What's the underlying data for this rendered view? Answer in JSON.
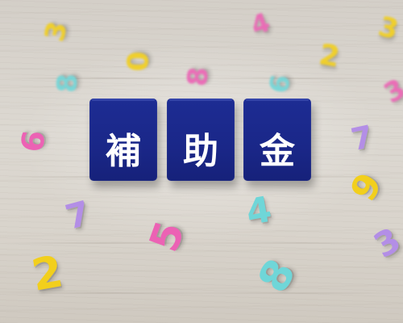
{
  "cubes": [
    {
      "char": "補"
    },
    {
      "char": "助"
    },
    {
      "char": "金"
    }
  ],
  "number_pieces": [
    {
      "digit": "3",
      "color": "#f2cf1c"
    },
    {
      "digit": "4",
      "color": "#ec62b4"
    },
    {
      "digit": "3",
      "color": "#f2cf1c"
    },
    {
      "digit": "8",
      "color": "#6fd6d8"
    },
    {
      "digit": "8",
      "color": "#ec62b4"
    },
    {
      "digit": "6",
      "color": "#6fd6d8"
    },
    {
      "digit": "0",
      "color": "#f2cf1c"
    },
    {
      "digit": "2",
      "color": "#f2cf1c"
    },
    {
      "digit": "6",
      "color": "#ec62b4"
    },
    {
      "digit": "7",
      "color": "#b38ee6"
    },
    {
      "digit": "3",
      "color": "#ec62b4"
    },
    {
      "digit": "9",
      "color": "#f2cf1c"
    },
    {
      "digit": "7",
      "color": "#b38ee6"
    },
    {
      "digit": "4",
      "color": "#6fd6d8"
    },
    {
      "digit": "5",
      "color": "#ec62b4"
    },
    {
      "digit": "2",
      "color": "#f2cf1c"
    },
    {
      "digit": "8",
      "color": "#6fd6d8"
    },
    {
      "digit": "3",
      "color": "#b38ee6"
    }
  ]
}
